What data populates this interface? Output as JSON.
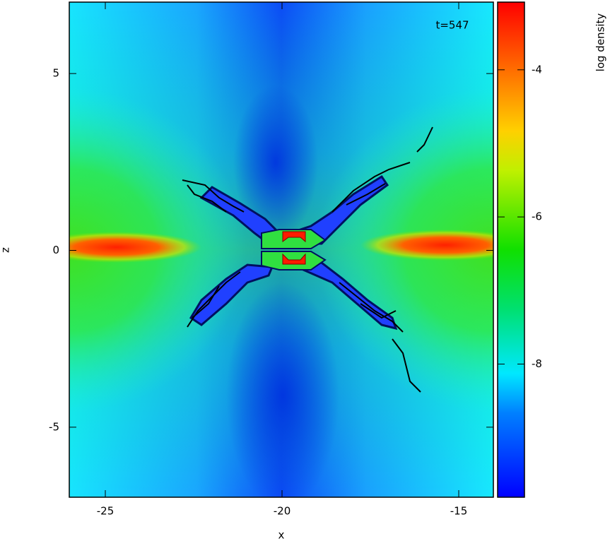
{
  "chart_data": {
    "type": "heatmap",
    "annotation": "t=547",
    "xlabel": "x",
    "ylabel": "z",
    "colorbar_label": "log density",
    "xlim": [
      -26.02,
      -14.02
    ],
    "ylim": [
      -6.98,
      7.02
    ],
    "xticks": [
      -25,
      -20,
      -15
    ],
    "yticks": [
      -5,
      0,
      5
    ],
    "clim": [
      -9.81,
      -3.08
    ],
    "cticks": [
      -8,
      -6,
      -4
    ]
  }
}
